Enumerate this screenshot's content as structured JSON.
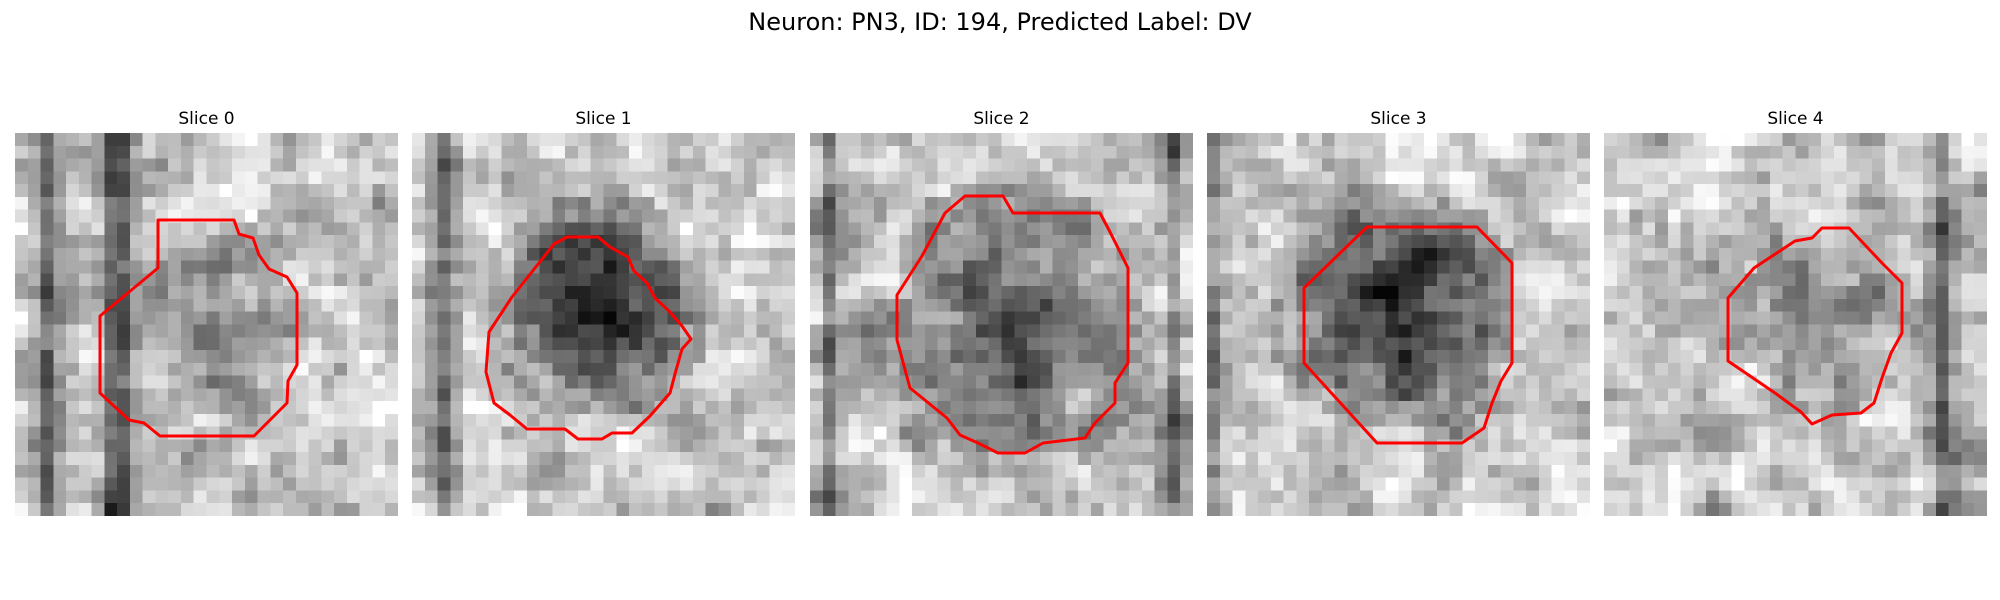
{
  "figure": {
    "title": "Neuron: PN3, ID: 194, Predicted Label: DV"
  },
  "slices": [
    {
      "label": "Slice 0",
      "contour_color": "#ff0000"
    },
    {
      "label": "Slice 1",
      "contour_color": "#ff0000"
    },
    {
      "label": "Slice 2",
      "contour_color": "#ff0000"
    },
    {
      "label": "Slice 3",
      "contour_color": "#ff0000"
    },
    {
      "label": "Slice 4",
      "contour_color": "#ff0000"
    }
  ]
}
